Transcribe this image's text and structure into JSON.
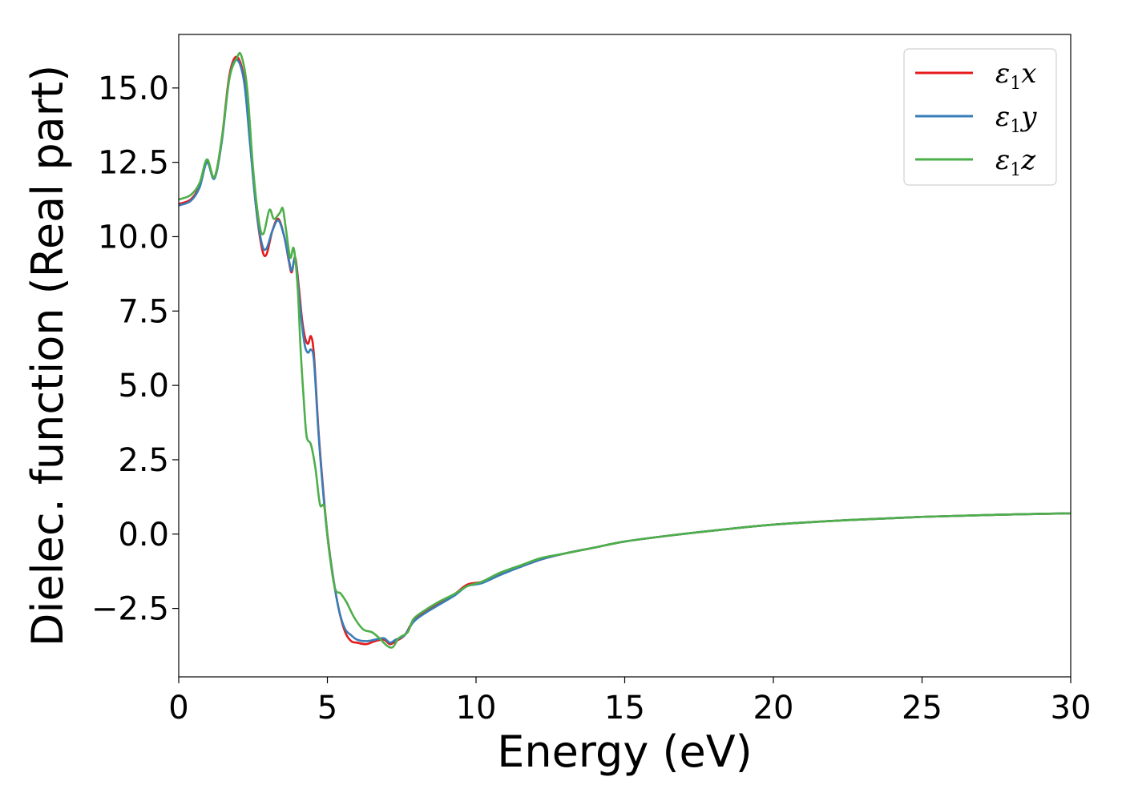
{
  "chart_data": {
    "type": "line",
    "title": "",
    "xlabel": "Energy (eV)",
    "ylabel": "Dielec. function (Real part)",
    "xlim": [
      0,
      30
    ],
    "ylim": [
      -4.8,
      16.8
    ],
    "xticks": [
      0,
      5,
      10,
      15,
      20,
      25,
      30
    ],
    "xtick_labels": [
      "0",
      "5",
      "10",
      "15",
      "20",
      "25",
      "30"
    ],
    "yticks": [
      -2.5,
      0.0,
      2.5,
      5.0,
      7.5,
      10.0,
      12.5,
      15.0
    ],
    "ytick_labels": [
      "−2.5",
      "0.0",
      "2.5",
      "5.0",
      "7.5",
      "10.0",
      "12.5",
      "15.0"
    ],
    "grid": false,
    "legend_position": "top-right",
    "series": [
      {
        "name": "ε1x",
        "legend_main": "ε",
        "legend_sub": "1",
        "legend_suffix": "x",
        "color": "#e41a1c",
        "points": [
          [
            0,
            11.1
          ],
          [
            0.4,
            11.25
          ],
          [
            0.7,
            11.7
          ],
          [
            0.95,
            12.55
          ],
          [
            1.2,
            12.0
          ],
          [
            1.45,
            13.3
          ],
          [
            1.7,
            15.4
          ],
          [
            1.95,
            16.05
          ],
          [
            2.2,
            15.3
          ],
          [
            2.4,
            13.2
          ],
          [
            2.6,
            11.0
          ],
          [
            2.8,
            9.6
          ],
          [
            2.95,
            9.4
          ],
          [
            3.15,
            10.2
          ],
          [
            3.35,
            10.6
          ],
          [
            3.55,
            10.0
          ],
          [
            3.7,
            9.2
          ],
          [
            3.8,
            8.8
          ],
          [
            3.92,
            9.3
          ],
          [
            4.05,
            8.2
          ],
          [
            4.15,
            7.2
          ],
          [
            4.25,
            6.6
          ],
          [
            4.35,
            6.4
          ],
          [
            4.45,
            6.65
          ],
          [
            4.55,
            6.0
          ],
          [
            4.7,
            3.5
          ],
          [
            4.85,
            1.6
          ],
          [
            5.0,
            0.0
          ],
          [
            5.2,
            -1.5
          ],
          [
            5.4,
            -2.6
          ],
          [
            5.6,
            -3.3
          ],
          [
            5.8,
            -3.6
          ],
          [
            6.0,
            -3.65
          ],
          [
            6.3,
            -3.7
          ],
          [
            6.6,
            -3.6
          ],
          [
            6.9,
            -3.55
          ],
          [
            7.1,
            -3.7
          ],
          [
            7.3,
            -3.6
          ],
          [
            7.6,
            -3.4
          ],
          [
            7.9,
            -2.9
          ],
          [
            8.3,
            -2.6
          ],
          [
            8.8,
            -2.3
          ],
          [
            9.3,
            -2.0
          ],
          [
            9.7,
            -1.7
          ],
          [
            10.2,
            -1.6
          ],
          [
            10.8,
            -1.35
          ],
          [
            11.5,
            -1.1
          ],
          [
            12.2,
            -0.85
          ],
          [
            13.0,
            -0.65
          ],
          [
            14.0,
            -0.45
          ],
          [
            15.0,
            -0.25
          ],
          [
            16.5,
            -0.05
          ],
          [
            18.0,
            0.12
          ],
          [
            20.0,
            0.32
          ],
          [
            22.5,
            0.47
          ],
          [
            25.0,
            0.58
          ],
          [
            27.5,
            0.65
          ],
          [
            30.0,
            0.7
          ]
        ]
      },
      {
        "name": "ε1y",
        "legend_main": "ε",
        "legend_sub": "1",
        "legend_suffix": "y",
        "color": "#377eb8",
        "points": [
          [
            0,
            11.05
          ],
          [
            0.4,
            11.2
          ],
          [
            0.7,
            11.65
          ],
          [
            0.95,
            12.5
          ],
          [
            1.2,
            11.95
          ],
          [
            1.45,
            13.2
          ],
          [
            1.7,
            15.3
          ],
          [
            1.95,
            15.95
          ],
          [
            2.2,
            15.2
          ],
          [
            2.4,
            13.1
          ],
          [
            2.6,
            11.0
          ],
          [
            2.8,
            9.75
          ],
          [
            2.95,
            9.6
          ],
          [
            3.15,
            10.2
          ],
          [
            3.35,
            10.55
          ],
          [
            3.55,
            10.0
          ],
          [
            3.7,
            9.25
          ],
          [
            3.8,
            8.85
          ],
          [
            3.92,
            9.25
          ],
          [
            4.05,
            8.0
          ],
          [
            4.15,
            7.0
          ],
          [
            4.25,
            6.3
          ],
          [
            4.35,
            6.1
          ],
          [
            4.45,
            6.2
          ],
          [
            4.55,
            5.8
          ],
          [
            4.7,
            3.4
          ],
          [
            4.85,
            1.5
          ],
          [
            5.0,
            -0.05
          ],
          [
            5.2,
            -1.5
          ],
          [
            5.4,
            -2.6
          ],
          [
            5.6,
            -3.2
          ],
          [
            5.8,
            -3.4
          ],
          [
            6.0,
            -3.55
          ],
          [
            6.3,
            -3.6
          ],
          [
            6.6,
            -3.55
          ],
          [
            6.9,
            -3.5
          ],
          [
            7.1,
            -3.65
          ],
          [
            7.3,
            -3.55
          ],
          [
            7.6,
            -3.4
          ],
          [
            7.9,
            -2.95
          ],
          [
            8.3,
            -2.65
          ],
          [
            8.8,
            -2.35
          ],
          [
            9.3,
            -2.05
          ],
          [
            9.7,
            -1.75
          ],
          [
            10.2,
            -1.65
          ],
          [
            10.8,
            -1.38
          ],
          [
            11.5,
            -1.1
          ],
          [
            12.2,
            -0.85
          ],
          [
            13.0,
            -0.65
          ],
          [
            14.0,
            -0.45
          ],
          [
            15.0,
            -0.25
          ],
          [
            16.5,
            -0.05
          ],
          [
            18.0,
            0.12
          ],
          [
            20.0,
            0.32
          ],
          [
            22.5,
            0.47
          ],
          [
            25.0,
            0.58
          ],
          [
            27.5,
            0.65
          ],
          [
            30.0,
            0.7
          ]
        ]
      },
      {
        "name": "ε1z",
        "legend_main": "ε",
        "legend_sub": "1",
        "legend_suffix": "z",
        "color": "#4daf4a",
        "points": [
          [
            0,
            11.25
          ],
          [
            0.4,
            11.4
          ],
          [
            0.7,
            11.8
          ],
          [
            0.95,
            12.6
          ],
          [
            1.2,
            12.0
          ],
          [
            1.45,
            13.3
          ],
          [
            1.7,
            15.3
          ],
          [
            1.95,
            16.0
          ],
          [
            2.1,
            16.1
          ],
          [
            2.3,
            15.0
          ],
          [
            2.5,
            12.3
          ],
          [
            2.7,
            10.5
          ],
          [
            2.85,
            10.1
          ],
          [
            3.05,
            10.9
          ],
          [
            3.2,
            10.6
          ],
          [
            3.4,
            10.8
          ],
          [
            3.5,
            10.95
          ],
          [
            3.6,
            10.3
          ],
          [
            3.75,
            9.3
          ],
          [
            3.87,
            9.6
          ],
          [
            4.0,
            8.3
          ],
          [
            4.1,
            6.2
          ],
          [
            4.2,
            4.6
          ],
          [
            4.3,
            3.3
          ],
          [
            4.45,
            3.0
          ],
          [
            4.6,
            2.2
          ],
          [
            4.75,
            1.0
          ],
          [
            4.9,
            0.9
          ],
          [
            5.05,
            -0.5
          ],
          [
            5.25,
            -1.8
          ],
          [
            5.45,
            -2.0
          ],
          [
            5.65,
            -2.3
          ],
          [
            5.9,
            -2.8
          ],
          [
            6.2,
            -3.2
          ],
          [
            6.5,
            -3.3
          ],
          [
            6.75,
            -3.5
          ],
          [
            7.0,
            -3.75
          ],
          [
            7.2,
            -3.8
          ],
          [
            7.4,
            -3.5
          ],
          [
            7.7,
            -3.3
          ],
          [
            7.9,
            -2.85
          ],
          [
            8.3,
            -2.55
          ],
          [
            8.8,
            -2.25
          ],
          [
            9.3,
            -2.0
          ],
          [
            9.7,
            -1.75
          ],
          [
            10.2,
            -1.6
          ],
          [
            10.8,
            -1.3
          ],
          [
            11.5,
            -1.05
          ],
          [
            12.2,
            -0.8
          ],
          [
            13.0,
            -0.65
          ],
          [
            14.0,
            -0.45
          ],
          [
            15.0,
            -0.25
          ],
          [
            16.5,
            -0.05
          ],
          [
            18.0,
            0.12
          ],
          [
            20.0,
            0.32
          ],
          [
            22.5,
            0.47
          ],
          [
            25.0,
            0.58
          ],
          [
            27.5,
            0.65
          ],
          [
            30.0,
            0.7
          ]
        ]
      }
    ]
  }
}
